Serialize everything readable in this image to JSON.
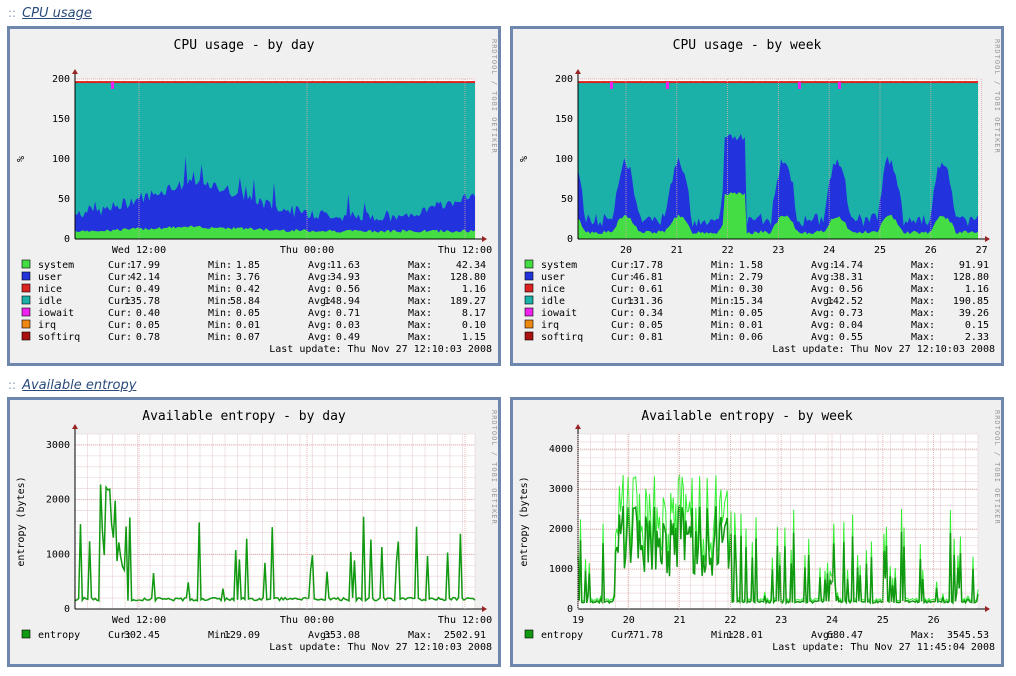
{
  "sections": [
    {
      "label": "CPU usage",
      "separator": "::"
    },
    {
      "label": "Available entropy",
      "separator": "::"
    }
  ],
  "rrd_credit": "RRDTOOL / TOBI OETIKER",
  "colors": {
    "system": "#44dd44",
    "user": "#2233dd",
    "nice": "#dd2222",
    "idle": "#1bb0a8",
    "iowait": "#ee22ee",
    "irq": "#ee8811",
    "softirq": "#aa1111",
    "entropy": "#119911"
  },
  "graphs": [
    {
      "id": "cpu-day",
      "title": "CPU usage - by day",
      "ylabel": "%",
      "yticks": [
        "0",
        "50",
        "100",
        "150",
        "200"
      ],
      "xticks": [
        "Wed 12:00",
        "Thu 00:00",
        "Thu 12:00"
      ],
      "legend": [
        {
          "name": "system",
          "cur": "17.99",
          "min": "1.85",
          "avg": "11.63",
          "max": "42.34",
          "color": "system"
        },
        {
          "name": "user",
          "cur": "42.14",
          "min": "3.76",
          "avg": "34.93",
          "max": "128.80",
          "color": "user"
        },
        {
          "name": "nice",
          "cur": "0.49",
          "min": "0.42",
          "avg": "0.56",
          "max": "1.16",
          "color": "nice"
        },
        {
          "name": "idle",
          "cur": "135.78",
          "min": "58.84",
          "avg": "148.94",
          "max": "189.27",
          "color": "idle"
        },
        {
          "name": "iowait",
          "cur": "0.40",
          "min": "0.05",
          "avg": "0.71",
          "max": "8.17",
          "color": "iowait"
        },
        {
          "name": "irq",
          "cur": "0.05",
          "min": "0.01",
          "avg": "0.03",
          "max": "0.10",
          "color": "irq"
        },
        {
          "name": "softirq",
          "cur": "0.78",
          "min": "0.07",
          "avg": "0.49",
          "max": "1.15",
          "color": "softirq"
        }
      ],
      "last_update": "Last update: Thu Nov 27 12:10:03 2008"
    },
    {
      "id": "cpu-week",
      "title": "CPU usage - by week",
      "ylabel": "%",
      "yticks": [
        "0",
        "50",
        "100",
        "150",
        "200"
      ],
      "xticks": [
        "20",
        "21",
        "22",
        "23",
        "24",
        "25",
        "26",
        "27"
      ],
      "legend": [
        {
          "name": "system",
          "cur": "17.78",
          "min": "1.58",
          "avg": "14.74",
          "max": "91.91",
          "color": "system"
        },
        {
          "name": "user",
          "cur": "46.81",
          "min": "2.79",
          "avg": "38.31",
          "max": "128.80",
          "color": "user"
        },
        {
          "name": "nice",
          "cur": "0.61",
          "min": "0.30",
          "avg": "0.56",
          "max": "1.16",
          "color": "nice"
        },
        {
          "name": "idle",
          "cur": "131.36",
          "min": "15.34",
          "avg": "142.52",
          "max": "190.85",
          "color": "idle"
        },
        {
          "name": "iowait",
          "cur": "0.34",
          "min": "0.05",
          "avg": "0.73",
          "max": "39.26",
          "color": "iowait"
        },
        {
          "name": "irq",
          "cur": "0.05",
          "min": "0.01",
          "avg": "0.04",
          "max": "0.15",
          "color": "irq"
        },
        {
          "name": "softirq",
          "cur": "0.81",
          "min": "0.06",
          "avg": "0.55",
          "max": "2.33",
          "color": "softirq"
        }
      ],
      "last_update": "Last update: Thu Nov 27 12:10:03 2008"
    },
    {
      "id": "entropy-day",
      "title": "Available entropy - by day",
      "ylabel": "entropy (bytes)",
      "yticks": [
        "0",
        "1000",
        "2000",
        "3000"
      ],
      "xticks": [
        "Wed 12:00",
        "Thu 00:00",
        "Thu 12:00"
      ],
      "legend": [
        {
          "name": "entropy",
          "cur": "302.45",
          "min": "129.09",
          "avg": "353.08",
          "max": "2502.91",
          "color": "entropy"
        }
      ],
      "last_update": "Last update: Thu Nov 27 12:10:03 2008"
    },
    {
      "id": "entropy-week",
      "title": "Available entropy - by week",
      "ylabel": "entropy (bytes)",
      "yticks": [
        "0",
        "1000",
        "2000",
        "3000",
        "4000"
      ],
      "xticks": [
        "19",
        "20",
        "21",
        "22",
        "23",
        "24",
        "25",
        "26"
      ],
      "legend": [
        {
          "name": "entropy",
          "cur": "771.78",
          "min": "128.01",
          "avg": "680.47",
          "max": "3545.53",
          "color": "entropy"
        }
      ],
      "last_update": "Last update: Thu Nov 27 11:45:04 2008"
    }
  ],
  "labels": {
    "cur": "Cur:",
    "min": "Min:",
    "avg": "Avg:",
    "max": "Max:"
  }
}
